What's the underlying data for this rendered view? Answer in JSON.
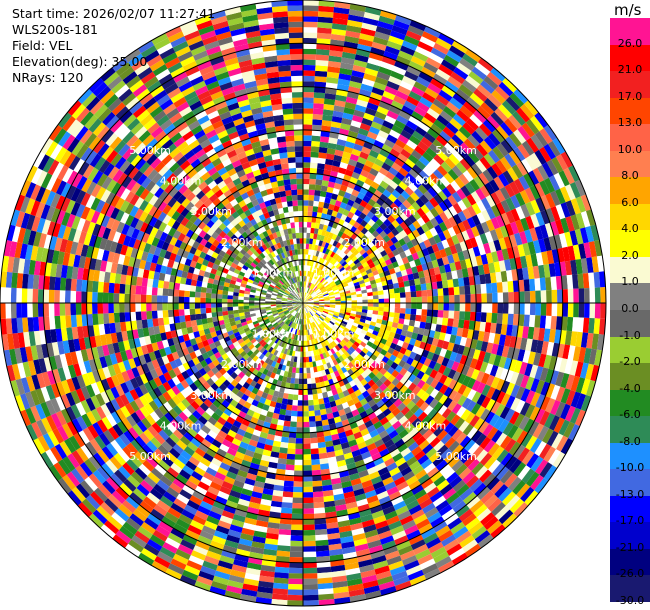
{
  "info": {
    "start_time": "Start time: 2026/02/07 11:27:41",
    "instrument": "WLS200s-181",
    "field": "Field: VEL",
    "elevation": "Elevation(deg): 35.00",
    "nrays": "NRays: 120"
  },
  "colorbar": {
    "unit": "m/s",
    "ticks": [
      "26.0",
      "21.0",
      "17.0",
      "13.0",
      "10.0",
      "8.0",
      "6.0",
      "4.0",
      "2.0",
      "1.0",
      "0.0",
      "-1.0",
      "-2.0",
      "-4.0",
      "-6.0",
      "-8.0",
      "-10.0",
      "-13.0",
      "-17.0",
      "-21.0",
      "-26.0",
      "-30.0"
    ],
    "colors": [
      "#ff1493",
      "#ff0000",
      "#f22020",
      "#ff4500",
      "#ff6347",
      "#ff7f50",
      "#ffa500",
      "#ffd700",
      "#ffff00",
      "#fafad2",
      "#808080",
      "#696969",
      "#9acd32",
      "#6b8e23",
      "#228b22",
      "#2e8b57",
      "#1e90ff",
      "#4169e1",
      "#0000ff",
      "#0000cd",
      "#000080",
      "#191970"
    ]
  },
  "chart_data": {
    "type": "heatmap",
    "title": "",
    "field": "VEL",
    "units": "m/s",
    "elevation_deg": 35.0,
    "n_rays": 120,
    "range_rings_km": [
      1.0,
      2.0,
      3.0,
      4.0,
      5.0,
      6.0,
      7.0
    ],
    "ring_labels": [
      "1.00km",
      "2.00km",
      "3.00km",
      "4.00km",
      "5.00km",
      "6.00km",
      "7.00km"
    ],
    "max_range_km": 7.0,
    "colorbar_range": [
      -30.0,
      26.0
    ],
    "description_of_field": "Inner ~1 km dominated by near-zero velocities (yellow/light on east side, olive-green on west side); beyond ~2 km the field is noisy, spanning the full color range."
  }
}
